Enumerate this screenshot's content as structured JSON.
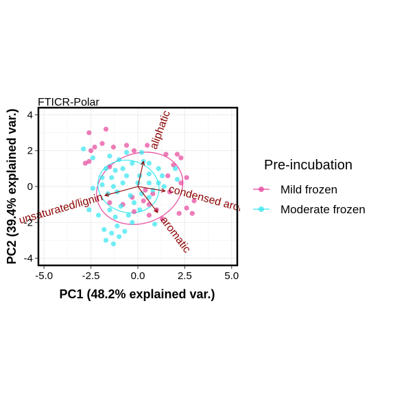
{
  "chart_data": {
    "type": "scatter",
    "title": "FTICR-Polar",
    "xlabel": "PC1 (48.2% explained var.)",
    "ylabel": "PC2 (39.4% explained var.)",
    "xlim": [
      -5.3,
      5.3
    ],
    "ylim": [
      -4.4,
      4.4
    ],
    "xticks": [
      -5.0,
      -2.5,
      0.0,
      2.5,
      5.0
    ],
    "xtick_labels": [
      "-5.0",
      "-2.5",
      "0.0",
      "2.5",
      "5.0"
    ],
    "yticks": [
      -4,
      -2,
      0,
      2,
      4
    ],
    "ytick_labels": [
      "-4",
      "-2",
      "0",
      "2",
      "4"
    ],
    "grid": true,
    "legend": {
      "title": "Pre-incubation",
      "placement": "right",
      "entries": [
        "Mild frozen",
        "Moderate frozen"
      ]
    },
    "colors": {
      "Mild frozen": "#e6449b",
      "Moderate frozen": "#33e6f0",
      "loadings": "#8b0000"
    },
    "series": [
      {
        "name": "Mild frozen",
        "ellipse": {
          "cx": 0.1,
          "cy": -0.1,
          "rx": 2.35,
          "ry": 1.95,
          "angle_deg": -20
        },
        "points": [
          [
            -1.7,
            3.2
          ],
          [
            -2.6,
            3.0
          ],
          [
            -1.9,
            2.4
          ],
          [
            -2.3,
            2.2
          ],
          [
            -2.5,
            2.0
          ],
          [
            -1.3,
            2.2
          ],
          [
            -0.6,
            2.3
          ],
          [
            -0.2,
            2.0
          ],
          [
            0.5,
            2.3
          ],
          [
            2.1,
            1.8
          ],
          [
            2.3,
            1.6
          ],
          [
            1.5,
            1.8
          ],
          [
            -2.6,
            1.4
          ],
          [
            -2.8,
            1.3
          ],
          [
            -1.5,
            1.1
          ],
          [
            1.9,
            1.2
          ],
          [
            2.6,
            0.5
          ],
          [
            2.3,
            0.2
          ],
          [
            1.7,
            -0.3
          ],
          [
            1.6,
            0.6
          ],
          [
            3.0,
            -0.8
          ],
          [
            2.6,
            -1.2
          ],
          [
            2.9,
            -1.5
          ],
          [
            2.2,
            -1.5
          ],
          [
            1.0,
            -1.3
          ],
          [
            0.6,
            -1.6
          ],
          [
            1.3,
            -1.8
          ],
          [
            0.4,
            -0.2
          ],
          [
            0.6,
            -1.0
          ],
          [
            -0.3,
            -0.6
          ],
          [
            -0.8,
            -1.0
          ],
          [
            -1.5,
            -0.9
          ],
          [
            -0.2,
            -1.4
          ],
          [
            0.3,
            -0.8
          ],
          [
            0.8,
            -0.4
          ]
        ]
      },
      {
        "name": "Moderate frozen",
        "ellipse": {
          "cx": -0.5,
          "cy": 0.0,
          "rx": 1.65,
          "ry": 1.45,
          "angle_deg": 15
        },
        "points": [
          [
            -2.9,
            2.1
          ],
          [
            -2.4,
            1.6
          ],
          [
            -1.5,
            1.7
          ],
          [
            -1.0,
            1.5
          ],
          [
            -0.6,
            1.9
          ],
          [
            0.2,
            1.9
          ],
          [
            0.6,
            1.3
          ],
          [
            0.3,
            1.4
          ],
          [
            -0.3,
            1.3
          ],
          [
            -1.7,
            1.0
          ],
          [
            -1.2,
            0.9
          ],
          [
            -0.8,
            1.0
          ],
          [
            -1.9,
            0.5
          ],
          [
            -1.4,
            0.5
          ],
          [
            -0.6,
            0.6
          ],
          [
            0.1,
            0.6
          ],
          [
            0.6,
            0.7
          ],
          [
            1.1,
            1.0
          ],
          [
            1.3,
            0.6
          ],
          [
            2.0,
            1.0
          ],
          [
            2.1,
            0.4
          ],
          [
            1.1,
            0.2
          ],
          [
            0.6,
            0.2
          ],
          [
            0.0,
            0.2
          ],
          [
            -0.8,
            0.2
          ],
          [
            -1.3,
            0.0
          ],
          [
            -1.9,
            0.1
          ],
          [
            -2.4,
            -0.1
          ],
          [
            -1.6,
            -0.4
          ],
          [
            -1.1,
            -0.3
          ],
          [
            -0.4,
            -0.5
          ],
          [
            0.2,
            -0.4
          ],
          [
            0.8,
            -0.2
          ],
          [
            1.4,
            0.0
          ],
          [
            0.6,
            -0.6
          ],
          [
            -0.2,
            -0.9
          ],
          [
            -0.9,
            -1.1
          ],
          [
            -1.5,
            -1.3
          ],
          [
            -2.1,
            -1.6
          ],
          [
            -2.6,
            -1.3
          ],
          [
            -1.2,
            -1.7
          ],
          [
            -0.5,
            -1.6
          ],
          [
            0.1,
            -1.3
          ],
          [
            -1.8,
            -2.4
          ],
          [
            -1.1,
            -2.2
          ],
          [
            -0.3,
            -2.0
          ],
          [
            0.9,
            -2.1
          ],
          [
            -1.4,
            -2.6
          ],
          [
            -0.7,
            -2.5
          ],
          [
            -1.7,
            -3.0
          ],
          [
            -1.3,
            -3.2
          ],
          [
            -1.0,
            -2.8
          ]
        ]
      }
    ],
    "loadings": [
      {
        "name": "aliphatic",
        "x": 0.3,
        "y": 1.4
      },
      {
        "name": "condensed aromatic",
        "x": 1.45,
        "y": -0.25
      },
      {
        "name": "aromatic",
        "x": 1.05,
        "y": -1.45
      },
      {
        "name": "unsaturated/lignin",
        "x": -1.75,
        "y": -0.5
      }
    ],
    "loading_labels": [
      {
        "name": "aliphatic",
        "text": "aliphatic",
        "x": 1.2,
        "y": 3.15,
        "angle": -70
      },
      {
        "name": "condensed aromatic",
        "text": "condensed aromatic",
        "x": 4.2,
        "y": -0.85,
        "angle": 15
      },
      {
        "name": "aromatic",
        "text": "aromatic",
        "x": 2.0,
        "y": -2.7,
        "angle": 53
      },
      {
        "name": "unsaturated/lignin",
        "text": "unsaturated/lignin",
        "x": -4.1,
        "y": -1.25,
        "angle": -16
      }
    ]
  }
}
